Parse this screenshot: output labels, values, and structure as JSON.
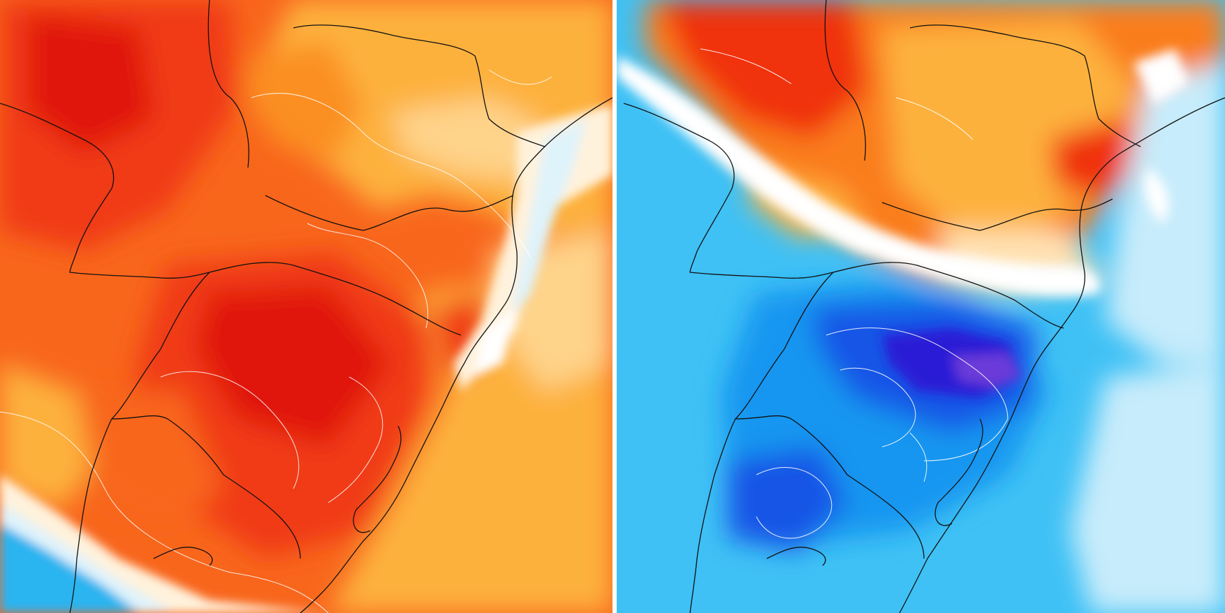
{
  "maps": [
    {
      "id": "left",
      "theme": "warm-anomaly",
      "palette": {
        "deep": "#e0140e",
        "strong": "#f03a14",
        "mid": "#f8661c",
        "orange": "#fb8f23",
        "light": "#fdb13c",
        "pale": "#fed38a",
        "cream": "#fff2dc",
        "ice": "#dff3fb",
        "cold": "#2bb4f0"
      }
    },
    {
      "id": "right",
      "theme": "mixed-anomaly",
      "palette": {
        "red": "#f0320f",
        "orange": "#fa7d1e",
        "light": "#fdb140",
        "pale": "#ffe2b4",
        "white": "#ffffff",
        "ice": "#c7ecfb",
        "sky": "#3fc1f5",
        "blue": "#1596f0",
        "deep-blue": "#1454e6",
        "indigo": "#2a1fd6",
        "violet": "#6a3ad8"
      }
    }
  ]
}
